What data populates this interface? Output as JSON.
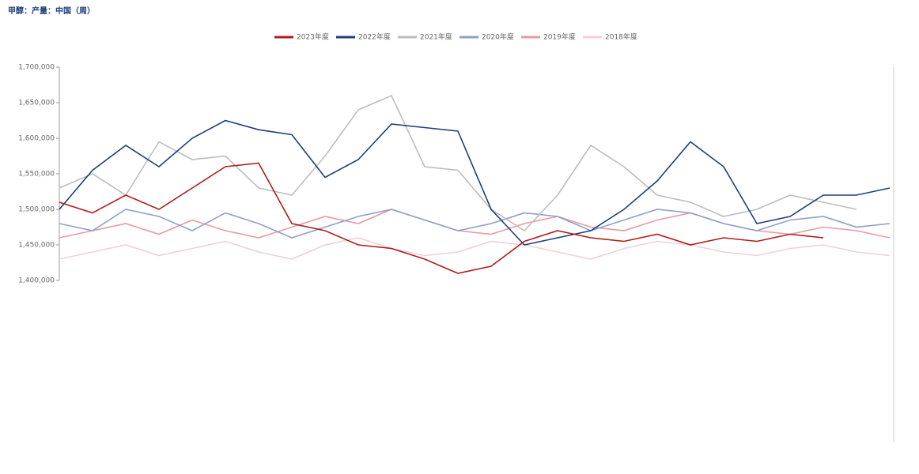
{
  "chart_data": {
    "type": "line",
    "title": "甲醇：产量：中国（周）",
    "ylim": [
      1400000,
      1700000
    ],
    "yticks": [
      {
        "value": 1400000,
        "label": "1,400,000"
      },
      {
        "value": 1450000,
        "label": "1,450,000"
      },
      {
        "value": 1500000,
        "label": "1,500,000"
      },
      {
        "value": 1550000,
        "label": "1,550,000"
      },
      {
        "value": 1600000,
        "label": "1,600,000"
      },
      {
        "value": 1650000,
        "label": "1,650,000"
      },
      {
        "value": 1700000,
        "label": "1,700,000"
      }
    ],
    "series": [
      {
        "name": "2023年度",
        "color": "#b01c1c",
        "values": [
          1510000,
          1495000,
          1520000,
          1500000,
          1530000,
          1560000,
          1565000,
          1480000,
          1470000,
          1450000,
          1445000,
          1430000,
          1410000,
          1420000,
          1455000,
          1470000,
          1460000,
          1455000,
          1465000,
          1450000,
          1460000,
          1455000,
          1465000,
          1460000,
          null,
          null
        ]
      },
      {
        "name": "2022年度",
        "color": "#1f3f7a",
        "values": [
          1500000,
          1555000,
          1590000,
          1560000,
          1600000,
          1625000,
          1612000,
          1605000,
          1545000,
          1570000,
          1620000,
          1615000,
          1610000,
          1500000,
          1450000,
          1460000,
          1470000,
          1500000,
          1540000,
          1595000,
          1560000,
          1480000,
          1490000,
          1520000,
          1520000,
          1530000
        ]
      },
      {
        "name": "2021年度",
        "color": "#bdbdbd",
        "values": [
          1530000,
          1550000,
          1520000,
          1595000,
          1570000,
          1575000,
          1530000,
          1520000,
          1575000,
          1640000,
          1660000,
          1560000,
          1555000,
          1500000,
          1470000,
          1520000,
          1590000,
          1560000,
          1520000,
          1510000,
          1490000,
          1500000,
          1520000,
          1510000,
          1500000,
          null
        ]
      },
      {
        "name": "2020年度",
        "color": "#8ea0c8",
        "values": [
          1480000,
          1470000,
          1500000,
          1490000,
          1470000,
          1495000,
          1480000,
          1460000,
          1475000,
          1490000,
          1500000,
          1485000,
          1470000,
          1480000,
          1495000,
          1490000,
          1470000,
          1485000,
          1500000,
          1495000,
          1480000,
          1470000,
          1485000,
          1490000,
          1475000,
          1480000
        ]
      },
      {
        "name": "2019年度",
        "color": "#e89aa0",
        "values": [
          1460000,
          1470000,
          1480000,
          1465000,
          1485000,
          1470000,
          1460000,
          1475000,
          1490000,
          1480000,
          1500000,
          1485000,
          1470000,
          1465000,
          1480000,
          1490000,
          1475000,
          1470000,
          1485000,
          1495000,
          1480000,
          1470000,
          1465000,
          1475000,
          1470000,
          1460000
        ]
      },
      {
        "name": "2018年度",
        "color": "#f2cfd6",
        "values": [
          1430000,
          1440000,
          1450000,
          1435000,
          1445000,
          1455000,
          1440000,
          1430000,
          1450000,
          1460000,
          1445000,
          1435000,
          1440000,
          1455000,
          1450000,
          1440000,
          1430000,
          1445000,
          1455000,
          1450000,
          1440000,
          1435000,
          1445000,
          1450000,
          1440000,
          1435000
        ]
      }
    ],
    "grid": false
  }
}
